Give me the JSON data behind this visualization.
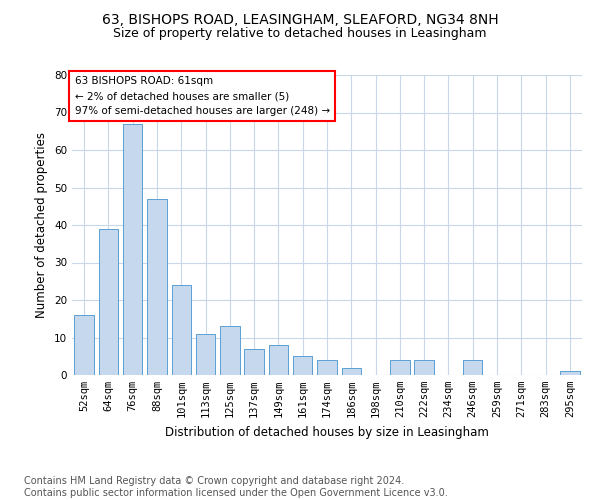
{
  "title1": "63, BISHOPS ROAD, LEASINGHAM, SLEAFORD, NG34 8NH",
  "title2": "Size of property relative to detached houses in Leasingham",
  "xlabel": "Distribution of detached houses by size in Leasingham",
  "ylabel": "Number of detached properties",
  "categories": [
    "52sqm",
    "64sqm",
    "76sqm",
    "88sqm",
    "101sqm",
    "113sqm",
    "125sqm",
    "137sqm",
    "149sqm",
    "161sqm",
    "174sqm",
    "186sqm",
    "198sqm",
    "210sqm",
    "222sqm",
    "234sqm",
    "246sqm",
    "259sqm",
    "271sqm",
    "283sqm",
    "295sqm"
  ],
  "values": [
    16,
    39,
    67,
    47,
    24,
    11,
    13,
    7,
    8,
    5,
    4,
    2,
    0,
    4,
    4,
    0,
    4,
    0,
    0,
    0,
    1
  ],
  "bar_color": "#c5d8ed",
  "bar_edge_color": "#5a9fd4",
  "ylim": [
    0,
    80
  ],
  "yticks": [
    0,
    10,
    20,
    30,
    40,
    50,
    60,
    70,
    80
  ],
  "annotation_box_text": [
    "63 BISHOPS ROAD: 61sqm",
    "← 2% of detached houses are smaller (5)",
    "97% of semi-detached houses are larger (248) →"
  ],
  "footer_line1": "Contains HM Land Registry data © Crown copyright and database right 2024.",
  "footer_line2": "Contains public sector information licensed under the Open Government Licence v3.0.",
  "bg_color": "#ffffff",
  "grid_color": "#c8d8e8",
  "title1_fontsize": 10,
  "title2_fontsize": 9,
  "xlabel_fontsize": 8.5,
  "ylabel_fontsize": 8.5,
  "tick_fontsize": 7.5,
  "footer_fontsize": 7,
  "ann_fontsize": 7.5
}
